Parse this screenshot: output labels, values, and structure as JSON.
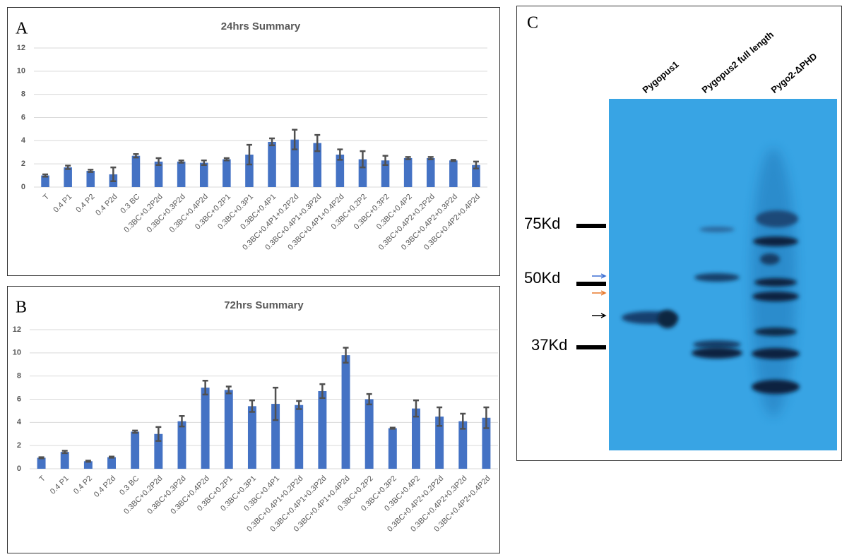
{
  "chart_data": [
    {
      "type": "bar",
      "panel_label": "A",
      "title": "24hrs Summary",
      "categories": [
        "T",
        "0.4 P1",
        "0.4 P2",
        "0.4 P2d",
        "0.3 BC",
        "0.3BC+0.2P2d",
        "0.3BC+0.3P2d",
        "0.3BC+0.4P2d",
        "0.3BC+0.2P1",
        "0.3BC+0.3P1",
        "0.3BC+0.4P1",
        "0.3BC+0.4P1+0.2P2d",
        "0.3BC+0.4P1+0.3P2d",
        "0.3BC+0.4P1+0.4P2d",
        "0.3BC+0.2P2",
        "0.3BC+0.3P2",
        "0.3BC+0.4P2",
        "0.3BC+0.4P2+0.2P2d",
        "0.3BC+0.4P2+0.3P2d",
        "0.3BC+0.4P2+0.4P2d"
      ],
      "values": [
        1.0,
        1.7,
        1.4,
        1.1,
        2.7,
        2.2,
        2.2,
        2.1,
        2.4,
        2.8,
        3.9,
        4.1,
        3.8,
        2.8,
        2.4,
        2.3,
        2.5,
        2.5,
        2.3,
        1.9
      ],
      "errors": [
        0.1,
        0.15,
        0.1,
        0.6,
        0.15,
        0.3,
        0.1,
        0.2,
        0.1,
        0.85,
        0.3,
        0.85,
        0.7,
        0.45,
        0.7,
        0.4,
        0.1,
        0.1,
        0.05,
        0.3
      ],
      "color": "#4472c4",
      "error_color": "#505050",
      "ylim": [
        0,
        12
      ],
      "yticks": [
        0,
        2,
        4,
        6,
        8,
        10,
        12
      ],
      "grid": true
    },
    {
      "type": "bar",
      "panel_label": "B",
      "title": "72hrs Summary",
      "categories": [
        "T",
        "0.4 P1",
        "0.4 P2",
        "0.4 P2d",
        "0.3 BC",
        "0.3BC+0.2P2d",
        "0.3BC+0.3P2d",
        "0.3BC+0.4P2d",
        "0.3BC+0.2P1",
        "0.3BC+0.3P1",
        "0.3BC+0.4P1",
        "0.3BC+0.4P1+0.2P2d",
        "0.3BC+0.4P1+0.3P2d",
        "0.3BC+0.4P1+0.4P2d",
        "0.3BC+0.2P2",
        "0.3BC+0.3P2",
        "0.3BC+0.4P2",
        "0.3BC+0.4P2+0.2P2d",
        "0.3BC+0.4P2+0.3P2d",
        "0.3BC+0.4P2+0.4P2d"
      ],
      "values": [
        0.95,
        1.45,
        0.65,
        1.0,
        3.2,
        3.0,
        4.1,
        7.0,
        6.8,
        5.4,
        5.6,
        5.5,
        6.7,
        9.8,
        6.0,
        3.5,
        5.2,
        4.5,
        4.1,
        4.4
      ],
      "errors": [
        0.05,
        0.1,
        0.05,
        0.05,
        0.1,
        0.6,
        0.45,
        0.6,
        0.3,
        0.5,
        1.4,
        0.35,
        0.6,
        0.65,
        0.45,
        0.05,
        0.7,
        0.8,
        0.65,
        0.9
      ],
      "color": "#4472c4",
      "error_color": "#505050",
      "ylim": [
        0,
        12
      ],
      "yticks": [
        0,
        2,
        4,
        6,
        8,
        10,
        12
      ],
      "grid": true
    }
  ],
  "blot": {
    "panel_label": "C",
    "lanes": [
      "Pygopus1",
      "Pygopus2 full length",
      "Pygo2-ΔPHD"
    ],
    "markers": [
      "75Kd",
      "50Kd",
      "37Kd"
    ]
  }
}
